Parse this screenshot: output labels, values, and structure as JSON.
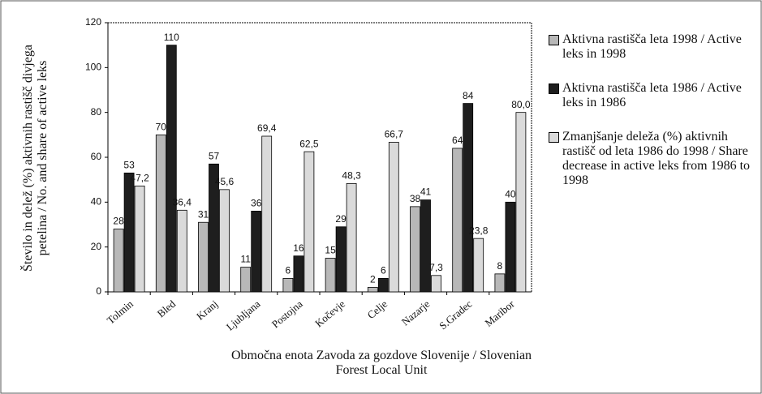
{
  "chart_data": {
    "type": "bar",
    "y_label": "Število in delež (%) aktivnih rastišč divjega petelina / No. and share of active leks",
    "x_label": "Območna enota Zavoda za gozdove Slovenije / Slovenian Forest Local Unit",
    "categories": [
      "Tolmin",
      "Bled",
      "Kranj",
      "Ljubljana",
      "Postojna",
      "Kočevje",
      "Celje",
      "Nazarje",
      "S.Gradec",
      "Maribor"
    ],
    "series": [
      {
        "name": "Aktivna rastišča leta 1998 / Active leks in 1998",
        "color": "#b8b8b8",
        "values": [
          28,
          70,
          31,
          11,
          6,
          15,
          2,
          38,
          64,
          8
        ]
      },
      {
        "name": "Aktivna rastišča leta 1986 / Active leks in 1986",
        "color": "#1e1e1e",
        "values": [
          53,
          110,
          57,
          36,
          16,
          29,
          6,
          41,
          84,
          40
        ]
      },
      {
        "name": "Zmanjšanje deleža (%) aktivnih rastišč od leta 1986 do 1998 / Share decrease in active leks from 1986 to 1998",
        "color": "#dadada",
        "values": [
          47.2,
          36.4,
          45.6,
          69.4,
          62.5,
          48.3,
          66.7,
          7.3,
          23.8,
          80.0
        ],
        "value_labels": [
          "47,2",
          "36,4",
          "45,6",
          "69,4",
          "62,5",
          "48,3",
          "66,7",
          "7,3",
          "23,8",
          "80,0"
        ]
      }
    ],
    "ylim": [
      0,
      120
    ],
    "yticks": [
      0,
      20,
      40,
      60,
      80,
      100,
      120
    ],
    "grid": false,
    "legend": "right"
  }
}
